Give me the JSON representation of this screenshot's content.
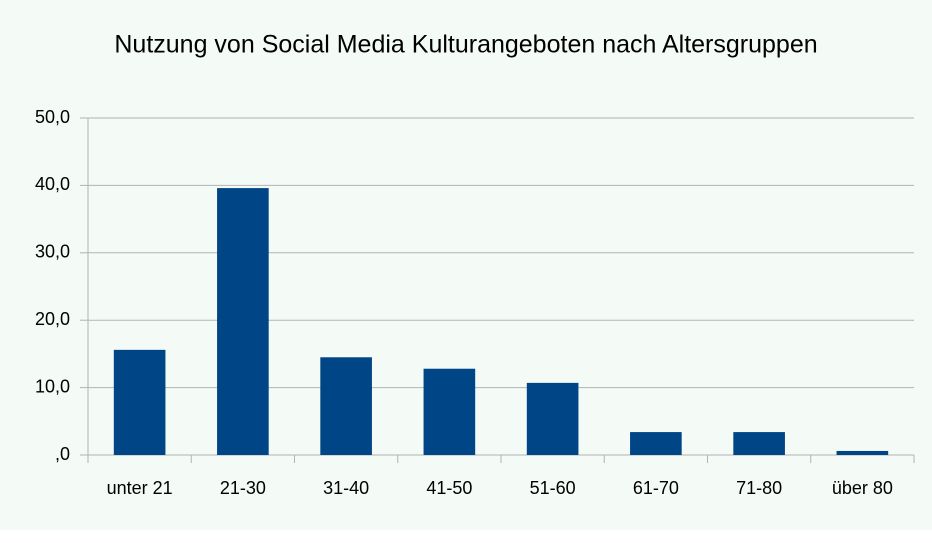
{
  "chart_data": {
    "type": "bar",
    "title": "Nutzung von Social Media Kulturangeboten nach Altersgruppen",
    "categories": [
      "unter 21",
      "21-30",
      "31-40",
      "41-50",
      "51-60",
      "61-70",
      "71-80",
      "über 80"
    ],
    "values": [
      15.6,
      39.6,
      14.5,
      12.8,
      10.7,
      3.4,
      3.4,
      0.6
    ],
    "color": "#004586",
    "ylim": [
      0,
      50
    ],
    "yticks": [
      {
        "value": 0,
        "label": ",0"
      },
      {
        "value": 10,
        "label": "10,0"
      },
      {
        "value": 20,
        "label": "20,0"
      },
      {
        "value": 30,
        "label": "30,0"
      },
      {
        "value": 40,
        "label": "40,0"
      },
      {
        "value": 50,
        "label": "50,0"
      }
    ],
    "grid": true
  }
}
